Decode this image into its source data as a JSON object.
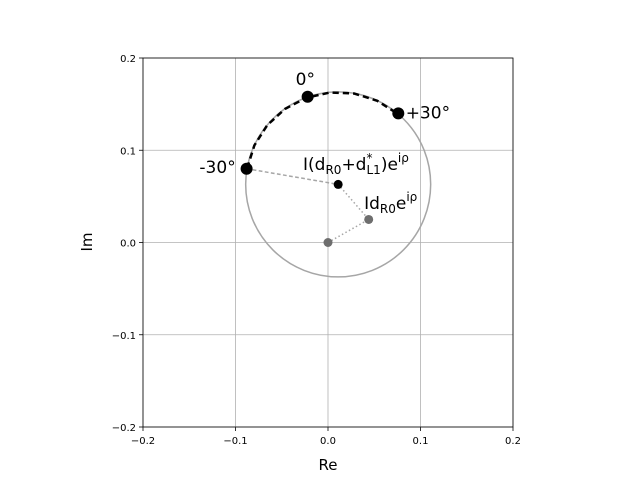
{
  "chart_data": {
    "type": "scatter",
    "xlabel": "Re",
    "ylabel": "Im",
    "xlim": [
      -0.2,
      0.2
    ],
    "ylim": [
      -0.2,
      0.2
    ],
    "xticks": [
      {
        "value": -0.2,
        "label": "−0.2"
      },
      {
        "value": -0.1,
        "label": "−0.1"
      },
      {
        "value": 0,
        "label": "0.0"
      },
      0.1,
      0.2
    ],
    "yticks": [
      {
        "value": -0.2,
        "label": "−0.2"
      },
      {
        "value": -0.1,
        "label": "−0.1"
      },
      {
        "value": 0,
        "label": "0.0"
      },
      0.1,
      0.2
    ],
    "grid": true,
    "circle": {
      "cx": 0.011,
      "cy": 0.063,
      "r": 0.1,
      "color": "#a6a6a6"
    },
    "lines": [
      {
        "x": [
          -0.0875,
          -0.0796,
          -0.0656,
          -0.0464,
          -0.0232,
          0.0023,
          0.0284,
          0.0533,
          0.0753
        ],
        "y": [
          0.0804,
          0.1053,
          0.1273,
          0.1449,
          0.157,
          0.1626,
          0.1615,
          0.1536,
          0.1396
        ],
        "color": "#000000",
        "dash": "dashed",
        "weight": "bold"
      },
      {
        "x": [
          -0.088,
          0.011
        ],
        "y": [
          0.08,
          0.063
        ],
        "color": "#a6a6a6",
        "dash": "dashed",
        "weight": "normal"
      },
      {
        "x": [
          0,
          0.044,
          0.011
        ],
        "y": [
          0,
          0.025,
          0.063
        ],
        "color": "#a6a6a6",
        "dash": "dotted",
        "weight": "normal"
      }
    ],
    "points": {
      "x": [
        -0.088,
        -0.022,
        0.076,
        0.011,
        0.044,
        0
      ],
      "y": [
        0.08,
        0.158,
        0.14,
        0.063,
        0.025,
        0
      ],
      "colors": [
        "#000000",
        "#000000",
        "#000000",
        "#000000",
        "#6e6e6e",
        "#6e6e6e"
      ],
      "marker": [
        "large",
        "large",
        "large",
        "small",
        "small",
        "small"
      ]
    },
    "annotations": [
      {
        "x": -0.139,
        "y": 0.081,
        "parts": [
          {
            "text": "-30°",
            "shift": "none"
          }
        ]
      },
      {
        "x": -0.035,
        "y": 0.176,
        "parts": [
          {
            "text": "0°",
            "shift": "none"
          }
        ]
      },
      {
        "x": 0.084,
        "y": 0.14,
        "parts": [
          {
            "text": "+30°",
            "shift": "none"
          }
        ]
      },
      {
        "x": -0.027,
        "y": 0.084,
        "parts": [
          {
            "text": "I(d",
            "shift": "none"
          },
          {
            "text": "R0",
            "shift": "sub"
          },
          {
            "text": "+d",
            "shift": "none"
          },
          {
            "text": "*",
            "shift": "sup"
          },
          {
            "text": "L1",
            "shift": "sub"
          },
          {
            "text": ")e",
            "shift": "none"
          },
          {
            "text": "iρ",
            "shift": "sup"
          }
        ]
      },
      {
        "x": 0.039,
        "y": 0.042,
        "parts": [
          {
            "text": "Id",
            "shift": "none"
          },
          {
            "text": "R0",
            "shift": "sub"
          },
          {
            "text": "e",
            "shift": "none"
          },
          {
            "text": "iρ",
            "shift": "sup"
          }
        ]
      }
    ]
  }
}
